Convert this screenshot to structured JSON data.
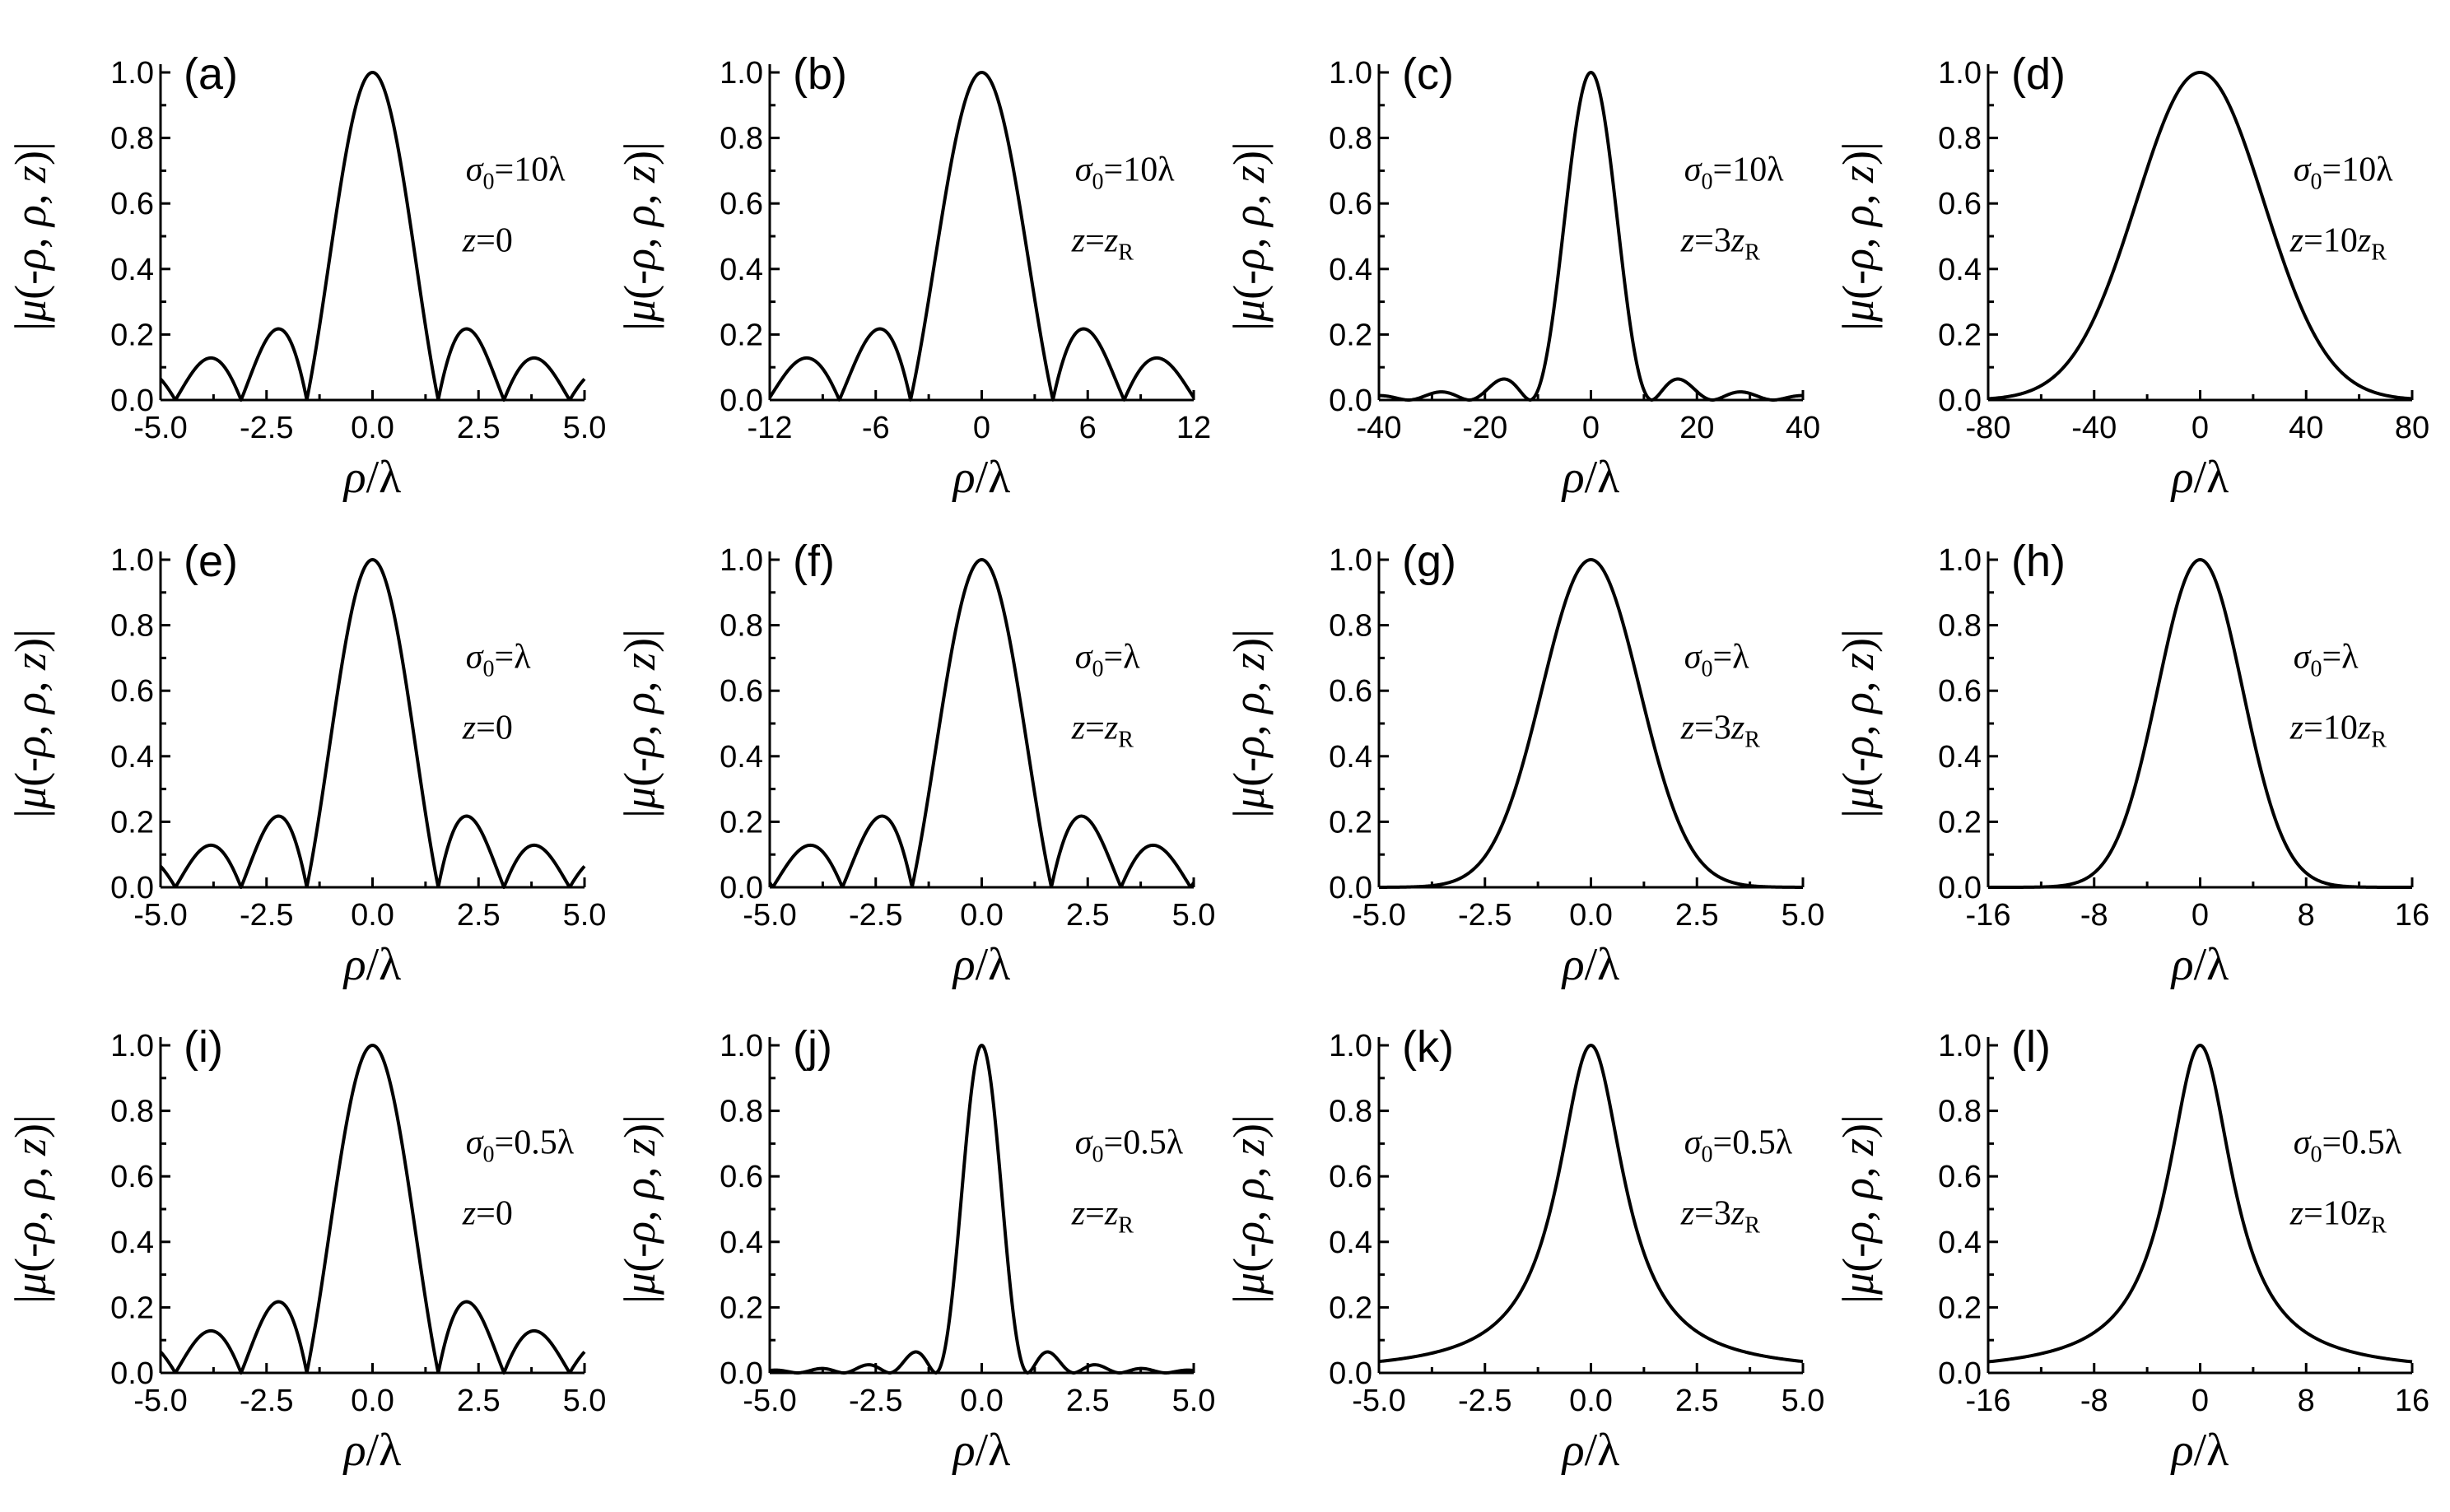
{
  "figure": {
    "xlabel_rho": "ρ",
    "xlabel_slash": "/",
    "xlabel_lambda": "λ",
    "ylabel_open": "|",
    "ylabel_mu": "μ",
    "ylabel_args_1": "(-",
    "ylabel_rho1": "ρ",
    "ylabel_args_2": ", ",
    "ylabel_rho2": "ρ",
    "ylabel_args_3": ", ",
    "ylabel_z": "z",
    "ylabel_close": ")|"
  },
  "chart_data": [
    {
      "type": "line",
      "label": "(a)",
      "sigma": "10λ",
      "z_coef": "",
      "z_value": "0",
      "kind": "sinc",
      "width": 1,
      "xlim": [
        -5,
        5
      ],
      "xticks": [
        "-5.0",
        "-2.5",
        "0.0",
        "2.5",
        "5.0"
      ],
      "ylim": [
        0,
        1
      ],
      "yticks": [
        "0.0",
        "0.2",
        "0.4",
        "0.6",
        "0.8",
        "1.0"
      ],
      "xlabel": "ρ/λ",
      "ylabel": "|μ(-ρ, ρ, z)|"
    },
    {
      "type": "line",
      "label": "(b)",
      "sigma": "10λ",
      "z_coef": "",
      "z_value": "z_R",
      "kind": "sinc",
      "width": 2.6,
      "xlim": [
        -12,
        12
      ],
      "xticks": [
        "-12",
        "-6",
        "0",
        "6",
        "12"
      ],
      "ylim": [
        0,
        1
      ],
      "yticks": [
        "0.0",
        "0.2",
        "0.4",
        "0.6",
        "0.8",
        "1.0"
      ],
      "xlabel": "ρ/λ",
      "ylabel": "|μ(-ρ, ρ, z)|"
    },
    {
      "type": "line",
      "label": "(c)",
      "sigma": "10λ",
      "z_coef": "3",
      "z_value": "z_R",
      "kind": "sinc2",
      "width": 7.4,
      "xlim": [
        -40,
        40
      ],
      "xticks": [
        "-40",
        "-20",
        "0",
        "20",
        "40"
      ],
      "ylim": [
        0,
        1
      ],
      "yticks": [
        "0.0",
        "0.2",
        "0.4",
        "0.6",
        "0.8",
        "1.0"
      ],
      "xlabel": "ρ/λ",
      "ylabel": "|μ(-ρ, ρ, z)|"
    },
    {
      "type": "line",
      "label": "(d)",
      "sigma": "10λ",
      "z_coef": "10",
      "z_value": "z_R",
      "kind": "gauss",
      "width": 24,
      "xlim": [
        -80,
        80
      ],
      "xticks": [
        "-80",
        "-40",
        "0",
        "40",
        "80"
      ],
      "ylim": [
        0,
        1
      ],
      "yticks": [
        "0.0",
        "0.2",
        "0.4",
        "0.6",
        "0.8",
        "1.0"
      ],
      "xlabel": "ρ/λ",
      "ylabel": "|μ(-ρ, ρ, z)|"
    },
    {
      "type": "line",
      "label": "(e)",
      "sigma": "λ",
      "z_coef": "",
      "z_value": "0",
      "kind": "sinc",
      "width": 1,
      "xlim": [
        -5,
        5
      ],
      "xticks": [
        "-5.0",
        "-2.5",
        "0.0",
        "2.5",
        "5.0"
      ],
      "ylim": [
        0,
        1
      ],
      "yticks": [
        "0.0",
        "0.2",
        "0.4",
        "0.6",
        "0.8",
        "1.0"
      ],
      "xlabel": "ρ/λ",
      "ylabel": "|μ(-ρ, ρ, z)|"
    },
    {
      "type": "line",
      "label": "(f)",
      "sigma": "λ",
      "z_coef": "",
      "z_value": "z_R",
      "kind": "sinc",
      "width": 1.06,
      "xlim": [
        -5,
        5
      ],
      "xticks": [
        "-5.0",
        "-2.5",
        "0.0",
        "2.5",
        "5.0"
      ],
      "ylim": [
        0,
        1
      ],
      "yticks": [
        "0.0",
        "0.2",
        "0.4",
        "0.6",
        "0.8",
        "1.0"
      ],
      "xlabel": "ρ/λ",
      "ylabel": "|μ(-ρ, ρ, z)|"
    },
    {
      "type": "line",
      "label": "(g)",
      "sigma": "λ",
      "z_coef": "3",
      "z_value": "z_R",
      "kind": "gauss",
      "width": 1.15,
      "xlim": [
        -5,
        5
      ],
      "xticks": [
        "-5.0",
        "-2.5",
        "0.0",
        "2.5",
        "5.0"
      ],
      "ylim": [
        0,
        1
      ],
      "yticks": [
        "0.0",
        "0.2",
        "0.4",
        "0.6",
        "0.8",
        "1.0"
      ],
      "xlabel": "ρ/λ",
      "ylabel": "|μ(-ρ, ρ, z)|"
    },
    {
      "type": "line",
      "label": "(h)",
      "sigma": "λ",
      "z_coef": "10",
      "z_value": "z_R",
      "kind": "gauss",
      "width": 3.2,
      "xlim": [
        -16,
        16
      ],
      "xticks": [
        "-16",
        "-8",
        "0",
        "8",
        "16"
      ],
      "ylim": [
        0,
        1
      ],
      "yticks": [
        "0.0",
        "0.2",
        "0.4",
        "0.6",
        "0.8",
        "1.0"
      ],
      "xlabel": "ρ/λ",
      "ylabel": "|μ(-ρ, ρ, z)|"
    },
    {
      "type": "line",
      "label": "(i)",
      "sigma": "0.5λ",
      "z_coef": "",
      "z_value": "0",
      "kind": "sinc",
      "width": 1,
      "xlim": [
        -5,
        5
      ],
      "xticks": [
        "-5.0",
        "-2.5",
        "0.0",
        "2.5",
        "5.0"
      ],
      "ylim": [
        0,
        1
      ],
      "yticks": [
        "0.0",
        "0.2",
        "0.4",
        "0.6",
        "0.8",
        "1.0"
      ],
      "xlabel": "ρ/λ",
      "ylabel": "|μ(-ρ, ρ, z)|"
    },
    {
      "type": "line",
      "label": "(j)",
      "sigma": "0.5λ",
      "z_coef": "",
      "z_value": "z_R",
      "kind": "sinc2",
      "width": 0.7,
      "xlim": [
        -5,
        5
      ],
      "xticks": [
        "-5.0",
        "-2.5",
        "0.0",
        "2.5",
        "5.0"
      ],
      "ylim": [
        0,
        1
      ],
      "yticks": [
        "0.0",
        "0.2",
        "0.4",
        "0.6",
        "0.8",
        "1.0"
      ],
      "xlabel": "ρ/λ",
      "ylabel": "|μ(-ρ, ρ, z)|"
    },
    {
      "type": "line",
      "label": "(k)",
      "sigma": "0.5λ",
      "z_coef": "3",
      "z_value": "z_R",
      "kind": "lorentz",
      "width": 0.95,
      "xlim": [
        -5,
        5
      ],
      "xticks": [
        "-5.0",
        "-2.5",
        "0.0",
        "2.5",
        "5.0"
      ],
      "ylim": [
        0,
        1
      ],
      "yticks": [
        "0.0",
        "0.2",
        "0.4",
        "0.6",
        "0.8",
        "1.0"
      ],
      "xlabel": "ρ/λ",
      "ylabel": "|μ(-ρ, ρ, z)|"
    },
    {
      "type": "line",
      "label": "(l)",
      "sigma": "0.5λ",
      "z_coef": "10",
      "z_value": "z_R",
      "kind": "lorentz",
      "width": 3.0,
      "xlim": [
        -16,
        16
      ],
      "xticks": [
        "-16",
        "-8",
        "0",
        "8",
        "16"
      ],
      "ylim": [
        0,
        1
      ],
      "yticks": [
        "0.0",
        "0.2",
        "0.4",
        "0.6",
        "0.8",
        "1.0"
      ],
      "xlabel": "ρ/λ",
      "ylabel": "|μ(-ρ, ρ, z)|"
    }
  ]
}
